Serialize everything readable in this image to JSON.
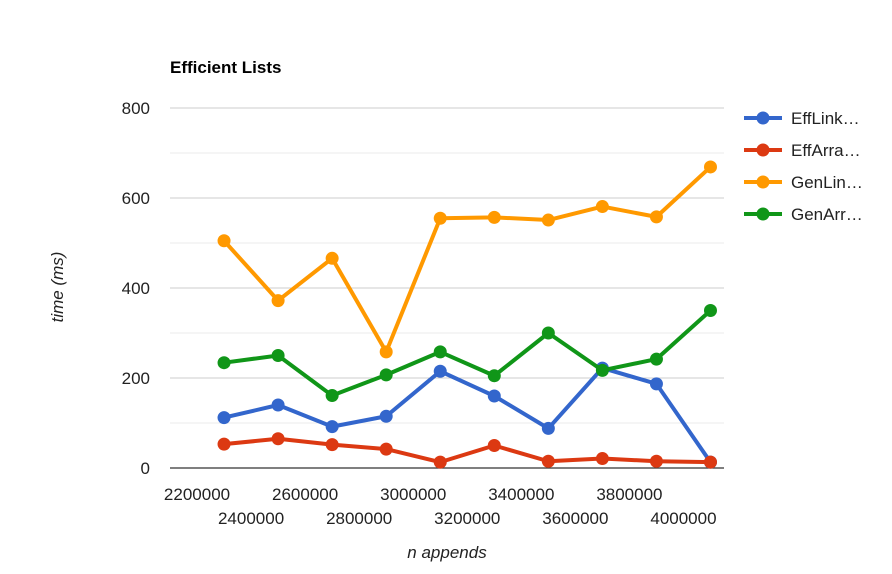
{
  "chart_data": {
    "type": "line",
    "title": "Efficient Lists",
    "xlabel": "n appends",
    "ylabel": "time (ms)",
    "ylim": [
      0,
      800
    ],
    "y_ticks": [
      0,
      200,
      400,
      600,
      800
    ],
    "x": [
      2300000,
      2500000,
      2700000,
      2900000,
      3100000,
      3300000,
      3500000,
      3700000,
      3900000,
      4100000
    ],
    "x_ticks_upper": [
      "2200000",
      "2600000",
      "3000000",
      "3400000",
      "3800000"
    ],
    "x_ticks_lower": [
      "2400000",
      "2800000",
      "3200000",
      "3600000",
      "4000000"
    ],
    "grid": true,
    "legend_position": "right",
    "series": [
      {
        "name": "EffLink…",
        "color": "#3366cc",
        "values": [
          112,
          140,
          92,
          115,
          215,
          160,
          88,
          222,
          187,
          13
        ]
      },
      {
        "name": "EffArra…",
        "color": "#dc3912",
        "values": [
          53,
          65,
          52,
          42,
          13,
          50,
          15,
          21,
          15,
          13
        ]
      },
      {
        "name": "GenLin…",
        "color": "#ff9900",
        "values": [
          505,
          372,
          466,
          258,
          555,
          557,
          551,
          581,
          558,
          669
        ]
      },
      {
        "name": "GenArr…",
        "color": "#109618",
        "values": [
          234,
          250,
          161,
          207,
          258,
          205,
          300,
          217,
          242,
          350
        ]
      }
    ]
  }
}
